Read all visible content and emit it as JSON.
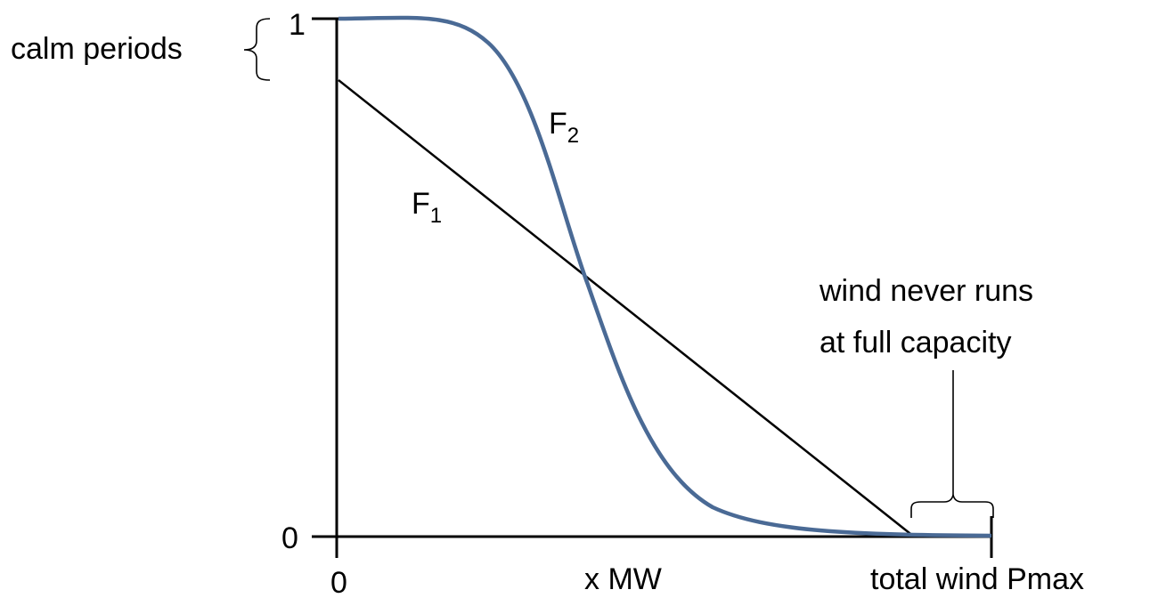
{
  "diagram": {
    "y_top_label": "1",
    "y_bottom_label": "0",
    "x_origin_label": "0",
    "x_mid_label": "x MW",
    "x_end_label": "total wind Pmax",
    "calm_label": "calm periods",
    "f1_base": "F",
    "f1_sub": "1",
    "f2_base": "F",
    "f2_sub": "2",
    "capacity_line1": "wind never runs",
    "capacity_line2": "at full capacity",
    "curve_color": "#4a6a95",
    "line_color": "#000000"
  }
}
